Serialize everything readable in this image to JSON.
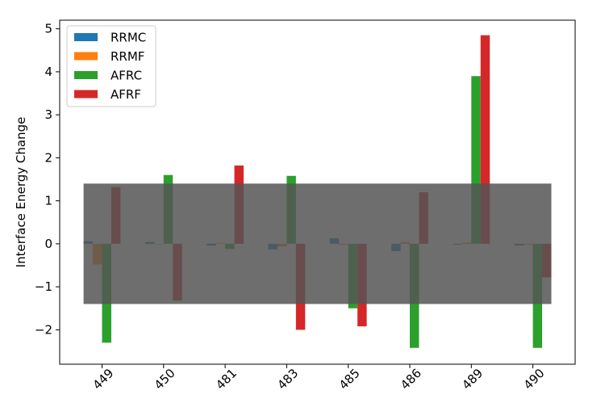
{
  "chart_data": {
    "type": "bar",
    "title": "",
    "xlabel": "",
    "ylabel": "Interface Energy Change",
    "categories": [
      "449",
      "450",
      "481",
      "483",
      "485",
      "486",
      "489",
      "490"
    ],
    "ylim": [
      -2.8,
      5.2
    ],
    "yticks": [
      -2,
      -1,
      0,
      1,
      2,
      3,
      4,
      5
    ],
    "ytick_labels": [
      "−2",
      "−1",
      "0",
      "1",
      "2",
      "3",
      "4",
      "5"
    ],
    "grid": false,
    "legend_position": "top-left",
    "series": [
      {
        "name": "RRMC",
        "color": "#1f77b4",
        "values": [
          0.06,
          0.04,
          -0.04,
          -0.13,
          0.13,
          -0.17,
          -0.02,
          -0.04
        ]
      },
      {
        "name": "RRMF",
        "color": "#ff7f0e",
        "values": [
          -0.48,
          0.0,
          0.02,
          -0.06,
          -0.02,
          0.04,
          0.03,
          -0.02
        ]
      },
      {
        "name": "AFRC",
        "color": "#2ca02c",
        "values": [
          -2.3,
          1.6,
          -0.12,
          1.58,
          -1.5,
          -2.42,
          3.9,
          -2.42
        ]
      },
      {
        "name": "AFRF",
        "color": "#d62728",
        "values": [
          1.32,
          -1.32,
          1.82,
          -2.0,
          -1.92,
          1.2,
          4.85,
          -0.78
        ]
      }
    ],
    "band": {
      "lower": -1.4,
      "upper": 1.4,
      "color": "#555555",
      "opacity": 0.85
    }
  }
}
